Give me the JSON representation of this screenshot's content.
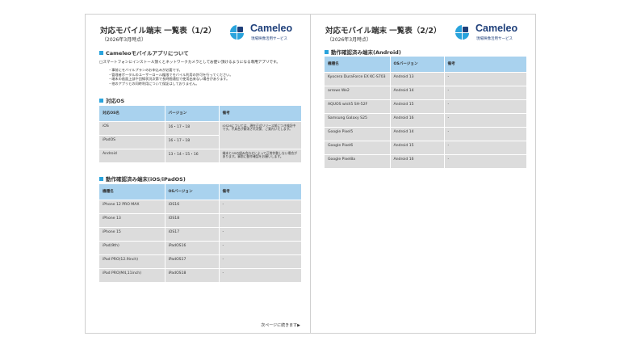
{
  "logo": {
    "name": "Cameleo",
    "tagline": "現場映像活用サービス"
  },
  "page1": {
    "title": "対応モバイル端末 一覧表（1/2）",
    "subtitle": "（2026年3月時点）",
    "section_app": "Cameleoモバイルアプリについて",
    "intro": "□スマートフォンにインストール頂くとネットワークカメラとしてお使い頂けるようになる専用アプリです。",
    "bullets": [
      "・事前にモバイルプランのお申込みが必要です。",
      "・管理者ポータルのユーザーロール権限でモバイル利用の許可を行ってください。",
      "・端末の画面上部や回線状況次第で長時間通信で使用出来ない場合があります。",
      "・他のアプリとの同時利用について保証はしておりません。"
    ],
    "section_os": "対応OS",
    "os_table": {
      "headers": [
        "対応OS名",
        "バージョン",
        "備考"
      ],
      "rows": [
        [
          "iOS",
          "16・17・18"
        ],
        [
          "iPadOS",
          "16・17・18"
        ],
        [
          "Android",
          "13・14・15・16"
        ]
      ],
      "note_ios": "iOS26については、現在正式リリース前につき検証中です。不具合が解消され次第、ご案内いたします。",
      "note_android": "端末とOSの組み合わせによって正常作動しない場合があります。事前に動作確認をお願いします。"
    },
    "section_ios": "動作確認済み端末(iOS/iPadOS)",
    "ios_table": {
      "headers": [
        "機種名",
        "OSバージョン",
        "備考"
      ],
      "rows": [
        [
          "iPhone 12 PRO MAX",
          "iOS16",
          "-"
        ],
        [
          "iPhone 13",
          "iOS18",
          "-"
        ],
        [
          "iPhone 15",
          "iOS17",
          "-"
        ],
        [
          "iPad(9th)",
          "iPadOS16",
          "-"
        ],
        [
          "iPad PRO(12.9inch)",
          "iPadOS17",
          "-"
        ],
        [
          "iPad PRO(M4,11inch)",
          "iPadOS18",
          "-"
        ]
      ]
    },
    "footer": "次ページに続きます▶"
  },
  "page2": {
    "title": "対応モバイル端末 一覧表（2/2）",
    "subtitle": "（2026年3月時点）",
    "section_android": "動作確認済み端末(Android)",
    "android_table": {
      "headers": [
        "機種名",
        "OSバージョン",
        "備考"
      ],
      "rows": [
        [
          "Kyocera DuraForce EX KC-S703",
          "Android 13",
          "-"
        ],
        [
          "arrows We2",
          "Android 14",
          "-"
        ],
        [
          "AQUOS wish5 SH-52F",
          "Android 15",
          "-"
        ],
        [
          "Samsung Galaxy S25",
          "Android 16",
          "-"
        ],
        [
          "Google Pixel5",
          "Android 14",
          "-"
        ],
        [
          "Google Pixel6",
          "Android 15",
          "-"
        ],
        [
          "Google Pixel8a",
          "Android 16",
          "-"
        ]
      ]
    }
  },
  "colors": {
    "accent": "#29a3dc",
    "header_bg": "#a9d2ee",
    "cell_bg": "#dcdcdc",
    "brand": "#1e3f7a"
  }
}
